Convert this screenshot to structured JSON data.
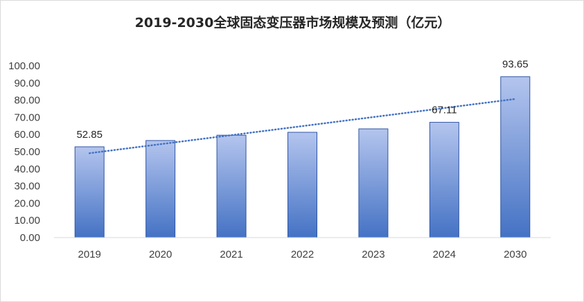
{
  "chart_data": {
    "type": "bar",
    "title": "2019-2030全球固态变压器市场规模及预测（亿元）",
    "categories": [
      "2019",
      "2020",
      "2021",
      "2022",
      "2023",
      "2024",
      "2030"
    ],
    "values": [
      52.85,
      56.5,
      59.6,
      61.3,
      63.3,
      67.11,
      93.65
    ],
    "data_labels": [
      "52.85",
      "",
      "",
      "",
      "",
      "67.11",
      "93.65"
    ],
    "y_ticks": [
      "0.00",
      "10.00",
      "20.00",
      "30.00",
      "40.00",
      "50.00",
      "60.00",
      "70.00",
      "80.00",
      "90.00",
      "100.00"
    ],
    "ylim": [
      0,
      100
    ],
    "trendline": "linear",
    "grid": false,
    "legend": "none",
    "colors": {
      "bar_top": "#b4c5ee",
      "bar_bottom": "#4472c4",
      "bar_edge": "#2f55a4",
      "trend": "#4472c4"
    }
  }
}
